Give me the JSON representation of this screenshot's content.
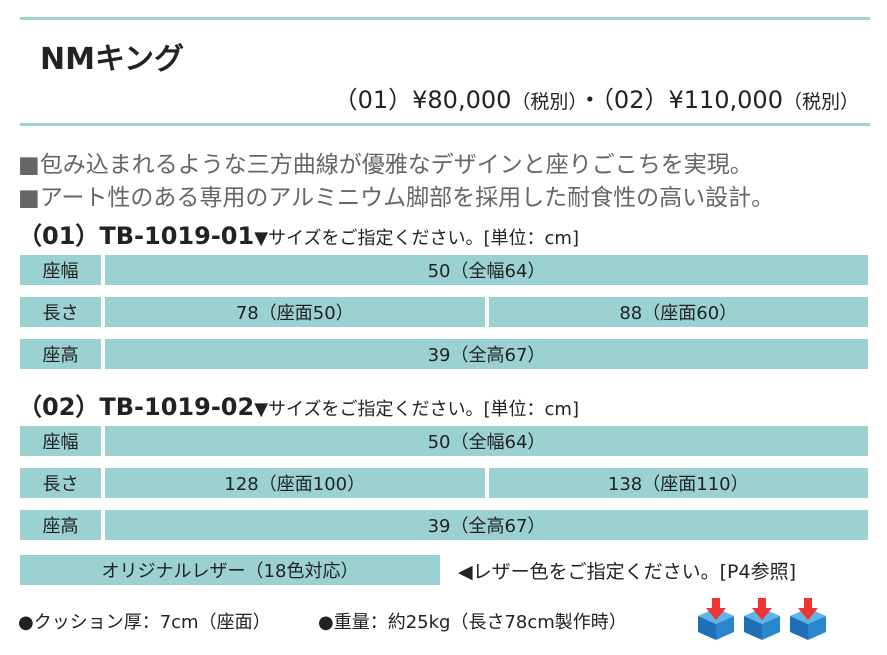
{
  "header": {
    "title": "NMキング",
    "price": [
      "（01）¥80,000",
      "（税別）",
      "・",
      "（02）¥110,000",
      "（税別）"
    ]
  },
  "features": [
    "■包み込まれるような三方曲線が優雅なデザインと座りごこちを実現。",
    "■アート性のある専用のアルミニウム脚部を採用した耐食性の高い設計。"
  ],
  "models": [
    {
      "code": "（01）TB-1019-01",
      "note": "▼サイズをご指定ください。[単位：cm]",
      "rows": [
        [
          "座幅",
          "50（全幅64）"
        ],
        [
          "長さ",
          "78（座面50）",
          "88（座面60）"
        ],
        [
          "座高",
          "39（全高67）"
        ]
      ]
    },
    {
      "code": "（02）TB-1019-02",
      "note": "▼サイズをご指定ください。[単位：cm]",
      "rows": [
        [
          "座幅",
          "50（全幅64）"
        ],
        [
          "長さ",
          "128（座面100）",
          "138（座面110）"
        ],
        [
          "座高",
          "39（全高67）"
        ]
      ]
    }
  ],
  "leather": {
    "label": "オリジナルレザー（18色対応）",
    "note": "◀レザー色をご指定ください。[P4参照]"
  },
  "footer": [
    "●クッション厚：7cm（座面）",
    "●重量：約25kg（長さ78cm製作時）"
  ]
}
